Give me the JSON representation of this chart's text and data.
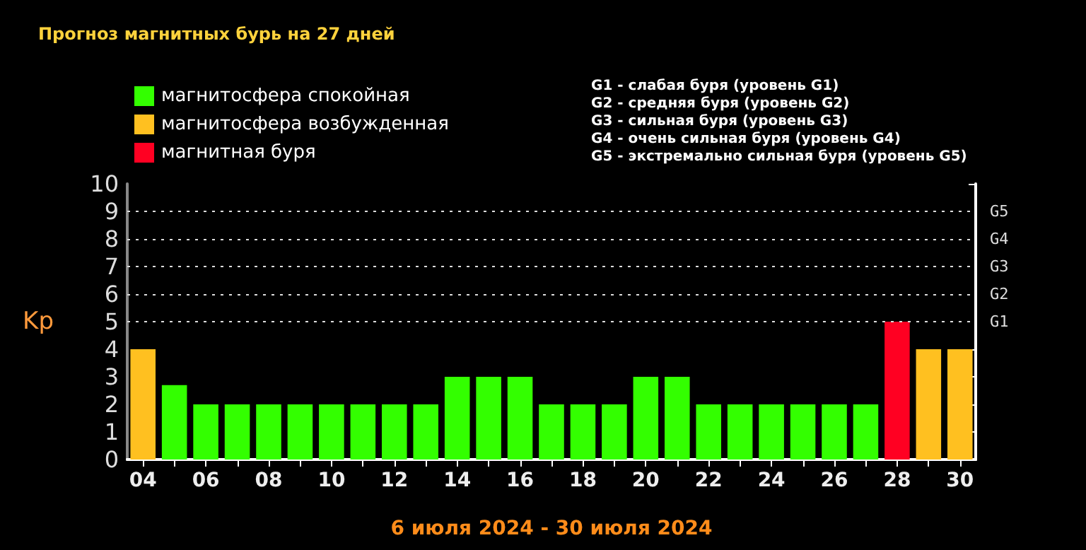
{
  "chart_data": {
    "type": "bar",
    "title": "Прогноз магнитных бурь на 27 дней",
    "xlabel": "6 июля 2024 - 30 июля 2024",
    "ylabel": "Kp",
    "categories": [
      "04",
      null,
      "06",
      null,
      "08",
      null,
      "10",
      null,
      "12",
      null,
      "14",
      null,
      "16",
      null,
      "18",
      null,
      "20",
      null,
      "22",
      null,
      "24",
      null,
      "26",
      null,
      "28",
      null,
      "30"
    ],
    "stacked": true,
    "series": [
      {
        "name": "магнитосфера спокойная",
        "color": "#33ff00",
        "values": [
          null,
          2.7,
          2,
          2,
          2,
          2,
          2,
          2,
          2,
          2,
          3,
          3,
          3,
          2,
          2,
          2,
          3,
          3,
          2,
          2,
          2,
          2,
          2,
          2,
          null,
          null,
          null
        ]
      },
      {
        "name": "магнитосфера возбужденная",
        "color": "#ffc020",
        "values": [
          4,
          null,
          null,
          null,
          null,
          null,
          null,
          null,
          null,
          null,
          null,
          null,
          null,
          null,
          null,
          null,
          null,
          null,
          null,
          null,
          null,
          null,
          null,
          null,
          null,
          4,
          4
        ]
      },
      {
        "name": "магнитная буря",
        "color": "#ff0022",
        "values": [
          null,
          null,
          null,
          null,
          null,
          null,
          null,
          null,
          null,
          null,
          null,
          null,
          null,
          null,
          null,
          null,
          null,
          null,
          null,
          null,
          null,
          null,
          null,
          null,
          5,
          null,
          null
        ]
      }
    ],
    "ylim": [
      0,
      10
    ],
    "yticks": [
      0,
      1,
      2,
      3,
      4,
      5,
      6,
      7,
      8,
      9,
      10
    ],
    "ref_lines": [
      {
        "axis": "y",
        "value": 5,
        "label": "G1",
        "color": "#dddddd",
        "line_style": "dotted"
      },
      {
        "axis": "y",
        "value": 6,
        "label": "G2",
        "color": "#dddddd",
        "line_style": "dotted"
      },
      {
        "axis": "y",
        "value": 7,
        "label": "G3",
        "color": "#dddddd",
        "line_style": "dotted"
      },
      {
        "axis": "y",
        "value": 8,
        "label": "G4",
        "color": "#dddddd",
        "line_style": "dotted"
      },
      {
        "axis": "y",
        "value": 9,
        "label": "G5",
        "color": "#dddddd",
        "line_style": "dotted"
      }
    ],
    "legend": "top left",
    "annotations": [
      "G1 - слабая буря (уровень G1)",
      "G2 - средняя буря (уровень G2)",
      "G3 - сильная буря (уровень G3)",
      "G4 - очень сильная буря (уровень G4)",
      "G5 - экстремально сильная буря (уровень G5)"
    ]
  }
}
